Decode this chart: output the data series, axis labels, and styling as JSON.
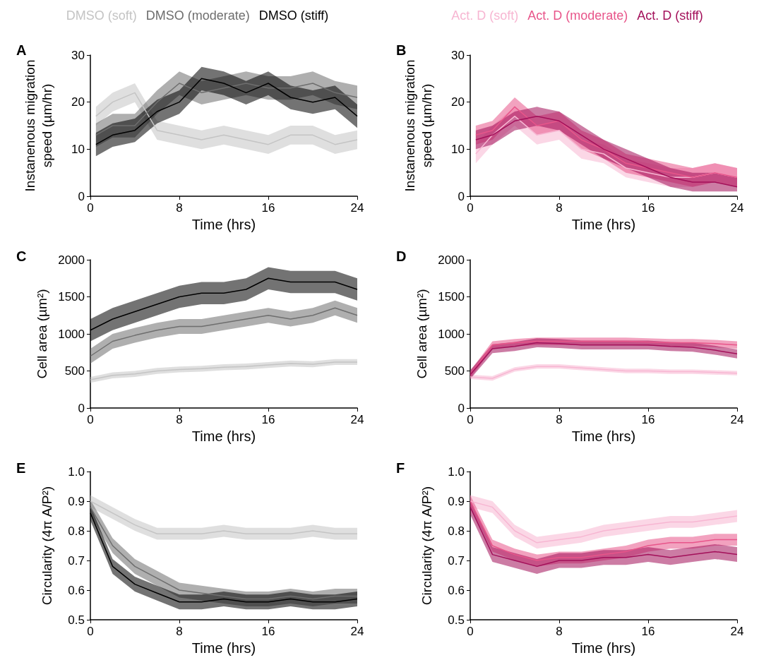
{
  "chart_data": [
    {
      "type": "line",
      "title": "A",
      "xlabel": "Time (hrs)",
      "ylabel": "Instanenous migration speed (µm/hr)",
      "x": [
        0.5,
        2,
        4,
        6,
        8,
        10,
        12,
        14,
        16,
        18,
        20,
        22,
        24
      ],
      "xlim": [
        0,
        24
      ],
      "xticks": [
        0,
        8,
        16,
        24
      ],
      "ylim": [
        0,
        30
      ],
      "yticks": [
        0,
        10,
        20,
        30
      ],
      "grid": false,
      "legend": "top",
      "series": [
        {
          "name": "DMSO (soft)",
          "color": "#c4c4c4",
          "values": [
            17,
            20,
            22,
            14,
            13,
            12,
            13,
            12,
            11,
            13,
            13,
            11,
            12
          ],
          "lower": [
            15,
            18,
            20,
            12,
            11,
            10,
            11,
            10,
            9,
            11,
            11,
            9,
            10
          ],
          "upper": [
            19,
            22,
            24,
            16,
            15,
            14,
            15,
            14,
            13,
            15,
            15,
            13,
            14
          ]
        },
        {
          "name": "DMSO (moderate)",
          "color": "#6e6e6e",
          "values": [
            13,
            15,
            15,
            20,
            24,
            22,
            23,
            24,
            23,
            23,
            24,
            22,
            21
          ],
          "lower": [
            10.5,
            12.5,
            12.5,
            17.5,
            21.5,
            19.5,
            20.5,
            21.5,
            20.5,
            20.5,
            21.5,
            19.5,
            18.5
          ],
          "upper": [
            15.5,
            17.5,
            17.5,
            22.5,
            26.5,
            24.5,
            25.5,
            26.5,
            25.5,
            25.5,
            26.5,
            24.5,
            23.5
          ]
        },
        {
          "name": "DMSO (stiff)",
          "color": "#000000",
          "values": [
            11,
            13,
            14,
            18,
            20,
            25,
            24,
            22,
            24,
            21,
            20,
            21,
            17
          ],
          "lower": [
            8.5,
            10.5,
            11.5,
            15.5,
            17.5,
            22.5,
            21.5,
            19.5,
            21.5,
            18.5,
            17.5,
            18.5,
            14.5
          ],
          "upper": [
            13.5,
            15.5,
            16.5,
            20.5,
            22.5,
            27.5,
            26.5,
            24.5,
            26.5,
            23.5,
            22.5,
            23.5,
            19.5
          ]
        }
      ]
    },
    {
      "type": "line",
      "title": "B",
      "xlabel": "Time (hrs)",
      "ylabel": "Instanenous migration speed (µm/hr)",
      "x": [
        0.5,
        2,
        4,
        6,
        8,
        10,
        12,
        14,
        16,
        18,
        20,
        22,
        24
      ],
      "xlim": [
        0,
        24
      ],
      "xticks": [
        0,
        8,
        16,
        24
      ],
      "ylim": [
        0,
        30
      ],
      "yticks": [
        0,
        10,
        20,
        30
      ],
      "grid": false,
      "legend": "top",
      "series": [
        {
          "name": "Act. D (soft)",
          "color": "#f7b6d2",
          "values": [
            9,
            13,
            17,
            13,
            14,
            10,
            9,
            6,
            5,
            4,
            4,
            5,
            4
          ],
          "lower": [
            7,
            11,
            15,
            11,
            12,
            8,
            7,
            4,
            3,
            2,
            2,
            3,
            2
          ],
          "upper": [
            11,
            15,
            19,
            15,
            16,
            12,
            11,
            8,
            7,
            6,
            6,
            7,
            6
          ]
        },
        {
          "name": "Act. D (moderate)",
          "color": "#e8558a",
          "values": [
            13,
            14,
            19,
            15,
            16,
            12,
            10,
            7,
            6,
            5,
            4,
            5,
            4
          ],
          "lower": [
            11,
            12,
            17,
            13,
            14,
            10,
            8,
            5,
            4,
            3,
            2,
            3,
            2
          ],
          "upper": [
            15,
            16,
            21,
            17,
            18,
            14,
            12,
            9,
            8,
            7,
            6,
            7,
            6
          ]
        },
        {
          "name": "Act. D (stiff)",
          "color": "#a3105a",
          "values": [
            12,
            13,
            16,
            17,
            16,
            13,
            10,
            8,
            6,
            4,
            3,
            3,
            2
          ],
          "lower": [
            10,
            11,
            14,
            15,
            14,
            11,
            8,
            6,
            4,
            2,
            1,
            1,
            1
          ],
          "upper": [
            14,
            15,
            18,
            19,
            18,
            15,
            12,
            10,
            8,
            6,
            5,
            5,
            4
          ]
        }
      ]
    },
    {
      "type": "line",
      "title": "C",
      "xlabel": "Time (hrs)",
      "ylabel": "Cell area (µm²)",
      "x": [
        0,
        2,
        4,
        6,
        8,
        10,
        12,
        14,
        16,
        18,
        20,
        22,
        24
      ],
      "xlim": [
        0,
        24
      ],
      "xticks": [
        0,
        8,
        16,
        24
      ],
      "ylim": [
        0,
        2000
      ],
      "yticks": [
        0,
        500,
        1000,
        1500,
        2000
      ],
      "grid": false,
      "series": [
        {
          "color": "#c4c4c4",
          "values": [
            380,
            440,
            460,
            500,
            520,
            530,
            550,
            560,
            580,
            600,
            590,
            620,
            620
          ],
          "lower": [
            340,
            400,
            420,
            460,
            480,
            490,
            510,
            520,
            540,
            560,
            550,
            580,
            580
          ],
          "upper": [
            420,
            480,
            500,
            540,
            560,
            570,
            590,
            600,
            620,
            640,
            630,
            660,
            660
          ]
        },
        {
          "color": "#6e6e6e",
          "values": [
            700,
            900,
            980,
            1050,
            1100,
            1100,
            1150,
            1200,
            1250,
            1200,
            1250,
            1350,
            1250
          ],
          "lower": [
            600,
            800,
            880,
            950,
            1000,
            1000,
            1050,
            1100,
            1150,
            1100,
            1150,
            1250,
            1150
          ],
          "upper": [
            800,
            1000,
            1080,
            1150,
            1200,
            1200,
            1250,
            1300,
            1350,
            1300,
            1350,
            1450,
            1350
          ]
        },
        {
          "color": "#000000",
          "values": [
            1050,
            1200,
            1300,
            1400,
            1500,
            1550,
            1550,
            1600,
            1750,
            1700,
            1700,
            1700,
            1600
          ],
          "lower": [
            900,
            1050,
            1150,
            1250,
            1350,
            1400,
            1400,
            1450,
            1600,
            1550,
            1550,
            1550,
            1450
          ],
          "upper": [
            1200,
            1350,
            1450,
            1550,
            1650,
            1700,
            1700,
            1750,
            1900,
            1850,
            1850,
            1850,
            1750
          ]
        }
      ]
    },
    {
      "type": "line",
      "title": "D",
      "xlabel": "Time (hrs)",
      "ylabel": "Cell area (µm²)",
      "x": [
        0,
        2,
        4,
        6,
        8,
        10,
        12,
        14,
        16,
        18,
        20,
        22,
        24
      ],
      "xlim": [
        0,
        24
      ],
      "xticks": [
        0,
        8,
        16,
        24
      ],
      "ylim": [
        0,
        2000
      ],
      "yticks": [
        0,
        500,
        1000,
        1500,
        2000
      ],
      "grid": false,
      "series": [
        {
          "color": "#f7b6d2",
          "values": [
            420,
            400,
            520,
            560,
            560,
            540,
            520,
            500,
            500,
            490,
            490,
            480,
            470
          ],
          "lower": [
            390,
            370,
            490,
            530,
            530,
            510,
            490,
            470,
            470,
            460,
            460,
            450,
            440
          ],
          "upper": [
            450,
            430,
            550,
            590,
            590,
            570,
            550,
            530,
            530,
            520,
            520,
            510,
            500
          ]
        },
        {
          "color": "#e8558a",
          "values": [
            450,
            850,
            880,
            900,
            900,
            900,
            900,
            900,
            890,
            880,
            880,
            870,
            850
          ],
          "lower": [
            400,
            800,
            830,
            850,
            850,
            850,
            850,
            850,
            840,
            830,
            830,
            820,
            800
          ],
          "upper": [
            500,
            900,
            930,
            950,
            950,
            950,
            950,
            950,
            940,
            930,
            930,
            920,
            900
          ]
        },
        {
          "color": "#a3105a",
          "values": [
            450,
            800,
            830,
            880,
            870,
            850,
            850,
            850,
            850,
            830,
            820,
            780,
            730
          ],
          "lower": [
            390,
            740,
            770,
            820,
            810,
            790,
            790,
            790,
            790,
            770,
            760,
            720,
            670
          ],
          "upper": [
            510,
            860,
            890,
            940,
            930,
            910,
            910,
            910,
            910,
            890,
            880,
            840,
            790
          ]
        }
      ]
    },
    {
      "type": "line",
      "title": "E",
      "xlabel": "Time (hrs)",
      "ylabel": "Circularity (4π A/P²)",
      "x": [
        0,
        2,
        4,
        6,
        8,
        10,
        12,
        14,
        16,
        18,
        20,
        22,
        24
      ],
      "xlim": [
        0,
        24
      ],
      "xticks": [
        0,
        8,
        16,
        24
      ],
      "ylim": [
        0.5,
        1.0
      ],
      "yticks": [
        0.5,
        0.6,
        0.7,
        0.8,
        0.9,
        {
          "value": 1.0,
          "label": "1.0"
        }
      ],
      "grid": false,
      "series": [
        {
          "color": "#c4c4c4",
          "values": [
            0.9,
            0.86,
            0.82,
            0.79,
            0.79,
            0.79,
            0.8,
            0.79,
            0.79,
            0.79,
            0.8,
            0.79,
            0.79
          ],
          "lower": [
            0.88,
            0.84,
            0.8,
            0.77,
            0.77,
            0.77,
            0.78,
            0.77,
            0.77,
            0.77,
            0.78,
            0.77,
            0.77
          ],
          "upper": [
            0.92,
            0.88,
            0.84,
            0.81,
            0.81,
            0.81,
            0.82,
            0.81,
            0.81,
            0.81,
            0.82,
            0.81,
            0.81
          ]
        },
        {
          "color": "#6e6e6e",
          "values": [
            0.88,
            0.75,
            0.68,
            0.64,
            0.6,
            0.59,
            0.58,
            0.57,
            0.57,
            0.58,
            0.57,
            0.58,
            0.58
          ],
          "lower": [
            0.855,
            0.725,
            0.655,
            0.615,
            0.575,
            0.565,
            0.555,
            0.545,
            0.545,
            0.555,
            0.545,
            0.555,
            0.555
          ],
          "upper": [
            0.905,
            0.775,
            0.705,
            0.665,
            0.625,
            0.615,
            0.605,
            0.595,
            0.595,
            0.605,
            0.595,
            0.605,
            0.605
          ]
        },
        {
          "color": "#000000",
          "values": [
            0.86,
            0.68,
            0.62,
            0.59,
            0.56,
            0.56,
            0.57,
            0.56,
            0.56,
            0.57,
            0.56,
            0.56,
            0.57
          ],
          "lower": [
            0.835,
            0.655,
            0.595,
            0.565,
            0.535,
            0.535,
            0.545,
            0.535,
            0.535,
            0.545,
            0.535,
            0.535,
            0.545
          ],
          "upper": [
            0.885,
            0.705,
            0.645,
            0.615,
            0.585,
            0.585,
            0.595,
            0.585,
            0.585,
            0.595,
            0.585,
            0.585,
            0.595
          ]
        }
      ]
    },
    {
      "type": "line",
      "title": "F",
      "xlabel": "Time (hrs)",
      "ylabel": "Circularity (4π A/P²)",
      "x": [
        0,
        2,
        4,
        6,
        8,
        10,
        12,
        14,
        16,
        18,
        20,
        22,
        24
      ],
      "xlim": [
        0,
        24
      ],
      "xticks": [
        0,
        8,
        16,
        24
      ],
      "ylim": [
        0.5,
        1.0
      ],
      "yticks": [
        0.5,
        0.6,
        0.7,
        0.8,
        0.9,
        {
          "value": 1.0,
          "label": "1.0"
        }
      ],
      "grid": false,
      "series": [
        {
          "color": "#f7b6d2",
          "values": [
            0.9,
            0.88,
            0.8,
            0.76,
            0.77,
            0.78,
            0.8,
            0.81,
            0.82,
            0.83,
            0.83,
            0.84,
            0.85
          ],
          "lower": [
            0.88,
            0.86,
            0.78,
            0.74,
            0.75,
            0.76,
            0.78,
            0.79,
            0.8,
            0.81,
            0.81,
            0.82,
            0.83
          ],
          "upper": [
            0.92,
            0.9,
            0.82,
            0.78,
            0.79,
            0.8,
            0.82,
            0.83,
            0.84,
            0.85,
            0.85,
            0.86,
            0.87
          ]
        },
        {
          "color": "#e8558a",
          "values": [
            0.9,
            0.75,
            0.72,
            0.7,
            0.71,
            0.71,
            0.72,
            0.73,
            0.75,
            0.76,
            0.76,
            0.77,
            0.77
          ],
          "lower": [
            0.88,
            0.73,
            0.7,
            0.68,
            0.69,
            0.69,
            0.7,
            0.71,
            0.73,
            0.74,
            0.74,
            0.75,
            0.75
          ],
          "upper": [
            0.92,
            0.77,
            0.74,
            0.72,
            0.73,
            0.73,
            0.74,
            0.75,
            0.77,
            0.78,
            0.78,
            0.79,
            0.79
          ]
        },
        {
          "color": "#a3105a",
          "values": [
            0.88,
            0.72,
            0.7,
            0.68,
            0.7,
            0.7,
            0.71,
            0.71,
            0.72,
            0.71,
            0.72,
            0.73,
            0.72
          ],
          "lower": [
            0.855,
            0.695,
            0.675,
            0.655,
            0.675,
            0.675,
            0.685,
            0.685,
            0.695,
            0.685,
            0.695,
            0.705,
            0.695
          ],
          "upper": [
            0.905,
            0.745,
            0.725,
            0.705,
            0.725,
            0.725,
            0.735,
            0.735,
            0.745,
            0.735,
            0.745,
            0.755,
            0.745
          ]
        }
      ]
    }
  ]
}
